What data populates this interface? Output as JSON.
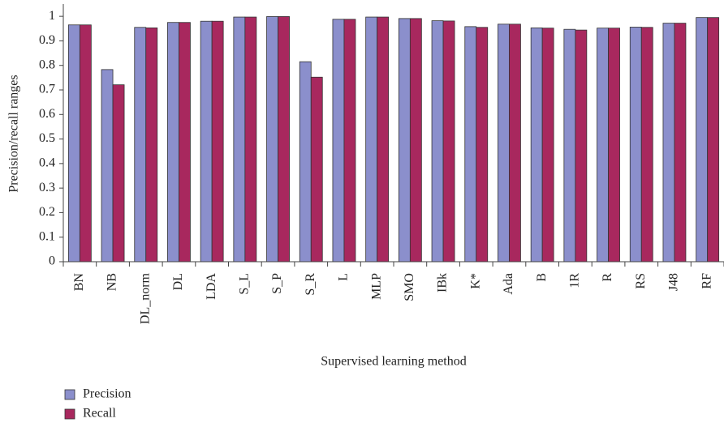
{
  "chart_data": {
    "type": "bar",
    "x_label": "Supervised learning method",
    "y_label": "Precision/recall ranges",
    "categories": [
      "BN",
      "NB",
      "DL_norm",
      "DL",
      "LDA",
      "S_L",
      "S_P",
      "S_R",
      "L",
      "MLP",
      "SMO",
      "IBk",
      "K*",
      "Ada",
      "B",
      "1R",
      "R",
      "RS",
      "J48",
      "RF"
    ],
    "series": [
      {
        "name": "Precision",
        "color": "#8b8fcc",
        "values": [
          0.965,
          0.783,
          0.955,
          0.975,
          0.98,
          0.997,
          0.999,
          0.815,
          0.988,
          0.997,
          0.991,
          0.982,
          0.958,
          0.968,
          0.953,
          0.947,
          0.952,
          0.956,
          0.972,
          0.995
        ]
      },
      {
        "name": "Recall",
        "color": "#a8285e",
        "values": [
          0.965,
          0.721,
          0.953,
          0.975,
          0.98,
          0.997,
          0.999,
          0.752,
          0.988,
          0.997,
          0.991,
          0.981,
          0.955,
          0.968,
          0.952,
          0.944,
          0.952,
          0.955,
          0.972,
          0.995
        ]
      }
    ],
    "ylim": [
      0,
      1.05
    ],
    "yticks": [
      0,
      0.1,
      0.2,
      0.3,
      0.4,
      0.5,
      0.6,
      0.7,
      0.8,
      0.9,
      1
    ]
  }
}
